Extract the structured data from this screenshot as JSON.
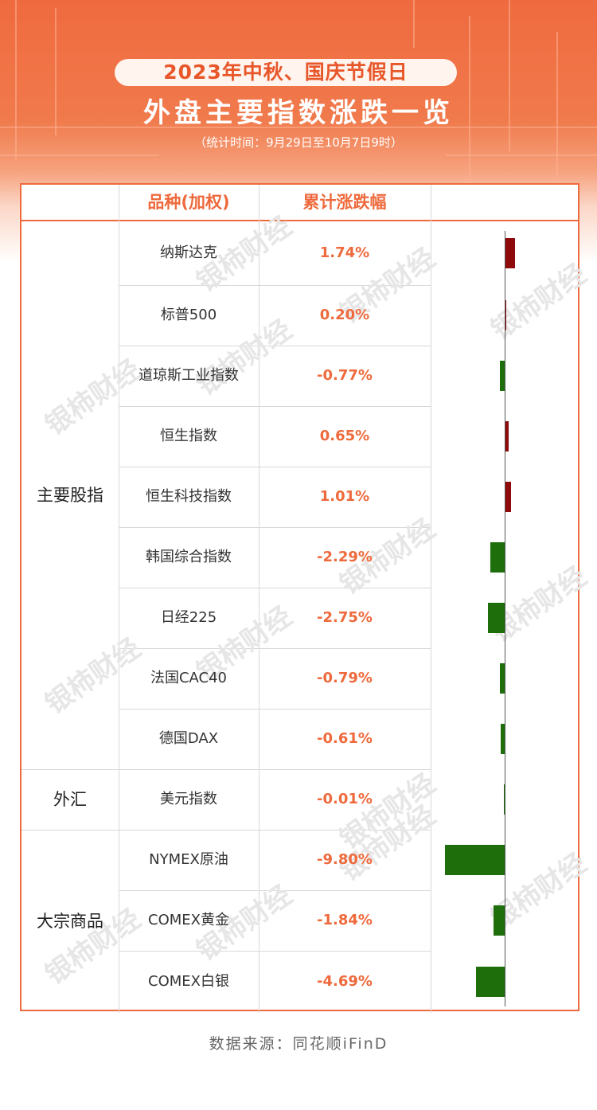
{
  "title": {
    "line1": "2023年中秋、国庆节假日",
    "line2": "外盘主要指数涨跌一览",
    "line3": "（统计时间：9月29日至10月7日9时）"
  },
  "table": {
    "col_name": "品种(加权)",
    "col_change": "累计涨跌幅"
  },
  "groups": [
    {
      "label": "主要股指"
    },
    {
      "label": "外汇"
    },
    {
      "label": "大宗商品"
    }
  ],
  "rows": [
    {
      "name": "纳斯达克",
      "change": "1.74%"
    },
    {
      "name": "标普500",
      "change": "0.20%"
    },
    {
      "name": "道琼斯工业指数",
      "change": "-0.77%"
    },
    {
      "name": "恒生指数",
      "change": "0.65%"
    },
    {
      "name": "恒生科技指数",
      "change": "1.01%"
    },
    {
      "name": "韩国综合指数",
      "change": "-2.29%"
    },
    {
      "name": "日经225",
      "change": "-2.75%"
    },
    {
      "name": "法国CAC40",
      "change": "-0.79%"
    },
    {
      "name": "德国DAX",
      "change": "-0.61%"
    },
    {
      "name": "美元指数",
      "change": "-0.01%"
    },
    {
      "name": "NYMEX原油",
      "change": "-9.80%"
    },
    {
      "name": "COMEX黄金",
      "change": "-1.84%"
    },
    {
      "name": "COMEX白银",
      "change": "-4.69%"
    }
  ],
  "chart_data": {
    "type": "bar",
    "orientation": "horizontal",
    "categories": [
      "纳斯达克",
      "标普500",
      "道琼斯工业指数",
      "恒生指数",
      "恒生科技指数",
      "韩国综合指数",
      "日经225",
      "法国CAC40",
      "德国DAX",
      "美元指数",
      "NYMEX原油",
      "COMEX黄金",
      "COMEX白银"
    ],
    "values": [
      1.74,
      0.2,
      -0.77,
      0.65,
      1.01,
      -2.29,
      -2.75,
      -0.79,
      -0.61,
      -0.01,
      -9.8,
      -1.84,
      -4.69
    ],
    "positive_color": "#8f0a0a",
    "negative_color": "#1e6e0c"
  },
  "watermark": "银柿财经",
  "source": "数据来源：同花顺iFinD",
  "colors": {
    "accent": "#ee6a3c",
    "hero": "#ef6a3f",
    "positive": "#8f0a0a",
    "negative": "#1e6e0c"
  }
}
